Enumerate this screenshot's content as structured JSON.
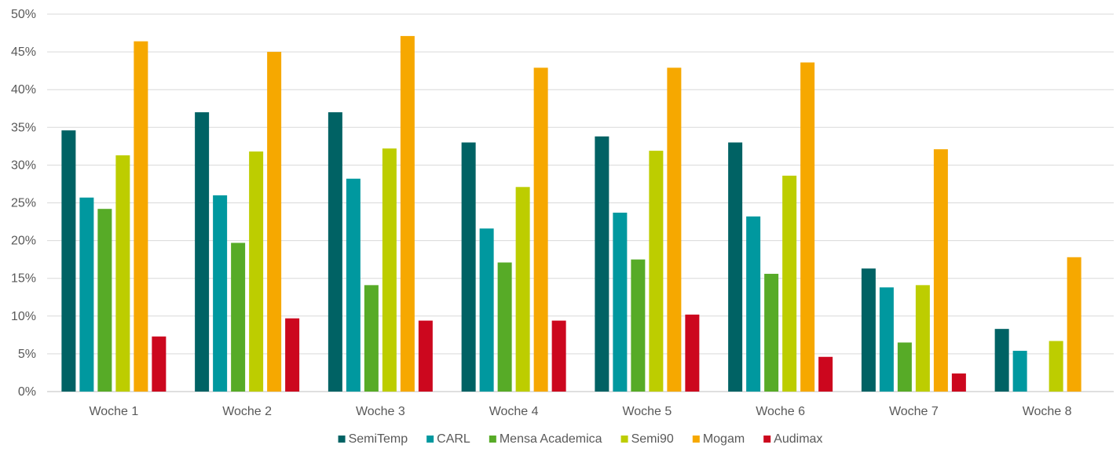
{
  "chart_data": {
    "type": "bar",
    "title": "",
    "xlabel": "",
    "ylabel": "",
    "ylim": [
      0,
      0.5
    ],
    "y_ticks": [
      "0%",
      "5%",
      "10%",
      "15%",
      "20%",
      "25%",
      "30%",
      "35%",
      "40%",
      "45%",
      "50%"
    ],
    "grid": true,
    "legend_position": "bottom",
    "categories": [
      "Woche 1",
      "Woche 2",
      "Woche 3",
      "Woche 4",
      "Woche 5",
      "Woche 6",
      "Woche 7",
      "Woche 8"
    ],
    "series": [
      {
        "name": "SemiTemp",
        "color": "#006264",
        "values": [
          0.346,
          0.37,
          0.37,
          0.33,
          0.338,
          0.33,
          0.163,
          0.083
        ]
      },
      {
        "name": "CARL",
        "color": "#00989f",
        "values": [
          0.257,
          0.26,
          0.282,
          0.216,
          0.237,
          0.232,
          0.138,
          0.054
        ]
      },
      {
        "name": "Mensa Academica",
        "color": "#57ab27",
        "values": [
          0.242,
          0.197,
          0.141,
          0.171,
          0.175,
          0.156,
          0.065,
          null
        ]
      },
      {
        "name": "Semi90",
        "color": "#bdcd00",
        "values": [
          0.313,
          0.318,
          0.322,
          0.271,
          0.319,
          0.286,
          0.141,
          0.067
        ]
      },
      {
        "name": "Mogam",
        "color": "#f6a800",
        "values": [
          0.464,
          0.45,
          0.471,
          0.429,
          0.429,
          0.436,
          0.321,
          0.178
        ]
      },
      {
        "name": "Audimax",
        "color": "#cc071e",
        "values": [
          0.073,
          0.097,
          0.094,
          0.094,
          0.102,
          0.046,
          0.024,
          null
        ]
      }
    ]
  }
}
